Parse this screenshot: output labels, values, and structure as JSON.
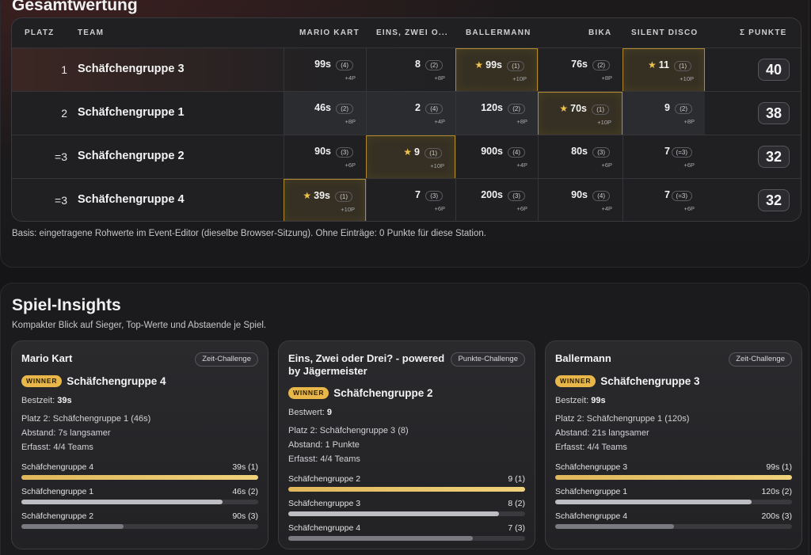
{
  "overview": {
    "title": "Gesamtwertung",
    "headers": {
      "platz": "PLATZ",
      "team": "TEAM",
      "games": [
        "MARIO KART",
        "EINS, ZWEI O...",
        "BALLERMANN",
        "BIKA",
        "SILENT DISCO"
      ],
      "total": "Σ PUNKTE"
    },
    "rows": [
      {
        "platz": "1",
        "team": "Schäfchengruppe 3",
        "total": "40",
        "cells": [
          {
            "value": "99s",
            "rank": "(4)",
            "points": "+4P",
            "star": false
          },
          {
            "value": "8",
            "rank": "(2)",
            "points": "+8P",
            "star": false
          },
          {
            "value": "99s",
            "rank": "(1)",
            "points": "+10P",
            "star": true
          },
          {
            "value": "76s",
            "rank": "(2)",
            "points": "+8P",
            "star": false
          },
          {
            "value": "11",
            "rank": "(1)",
            "points": "+10P",
            "star": true
          }
        ]
      },
      {
        "platz": "2",
        "team": "Schäfchengruppe 1",
        "total": "38",
        "cells": [
          {
            "value": "46s",
            "rank": "(2)",
            "points": "+8P",
            "star": false
          },
          {
            "value": "2",
            "rank": "(4)",
            "points": "+4P",
            "star": false
          },
          {
            "value": "120s",
            "rank": "(2)",
            "points": "+8P",
            "star": false
          },
          {
            "value": "70s",
            "rank": "(1)",
            "points": "+10P",
            "star": true
          },
          {
            "value": "9",
            "rank": "(2)",
            "points": "+8P",
            "star": false
          }
        ]
      },
      {
        "platz": "=3",
        "team": "Schäfchengruppe 2",
        "total": "32",
        "cells": [
          {
            "value": "90s",
            "rank": "(3)",
            "points": "+6P",
            "star": false
          },
          {
            "value": "9",
            "rank": "(1)",
            "points": "+10P",
            "star": true
          },
          {
            "value": "900s",
            "rank": "(4)",
            "points": "+4P",
            "star": false
          },
          {
            "value": "80s",
            "rank": "(3)",
            "points": "+6P",
            "star": false
          },
          {
            "value": "7",
            "rank": "(=3)",
            "points": "+6P",
            "star": false
          }
        ]
      },
      {
        "platz": "=3",
        "team": "Schäfchengruppe 4",
        "total": "32",
        "cells": [
          {
            "value": "39s",
            "rank": "(1)",
            "points": "+10P",
            "star": true
          },
          {
            "value": "7",
            "rank": "(3)",
            "points": "+6P",
            "star": false
          },
          {
            "value": "200s",
            "rank": "(3)",
            "points": "+6P",
            "star": false
          },
          {
            "value": "90s",
            "rank": "(4)",
            "points": "+4P",
            "star": false
          },
          {
            "value": "7",
            "rank": "(=3)",
            "points": "+6P",
            "star": false
          }
        ]
      }
    ],
    "basis_note": "Basis: eingetragene Rohwerte im Event-Editor (dieselbe Browser-Sitzung). Ohne Einträge: 0 Punkte für diese Station."
  },
  "insights": {
    "title": "Spiel-Insights",
    "subtitle": "Kompakter Blick auf Sieger, Top-Werte und Abstaende je Spiel.",
    "winner_badge": "WINNER",
    "cards": [
      {
        "name": "Mario Kart",
        "type": "Zeit-Challenge",
        "winner": "Schäfchengruppe 4",
        "best_label": "Bestzeit:",
        "best_value": "39s",
        "second": "Platz 2: Schäfchengruppe 1 (46s)",
        "gap": "Abstand: 7s langsamer",
        "coverage": "Erfasst: 4/4 Teams",
        "bars": [
          {
            "team": "Schäfchengruppe 4",
            "value": "39s (1)",
            "fill": 1.0,
            "style": "gold"
          },
          {
            "team": "Schäfchengruppe 1",
            "value": "46s (2)",
            "fill": 0.85,
            "style": "silver"
          },
          {
            "team": "Schäfchengruppe 2",
            "value": "90s (3)",
            "fill": 0.43,
            "style": "gray"
          }
        ]
      },
      {
        "name": "Eins, Zwei oder Drei? - powered by Jägermeister",
        "type": "Punkte-Challenge",
        "winner": "Schäfchengruppe 2",
        "best_label": "Bestwert:",
        "best_value": "9",
        "second": "Platz 2: Schäfchengruppe 3 (8)",
        "gap": "Abstand: 1 Punkte",
        "coverage": "Erfasst: 4/4 Teams",
        "bars": [
          {
            "team": "Schäfchengruppe 2",
            "value": "9 (1)",
            "fill": 1.0,
            "style": "gold"
          },
          {
            "team": "Schäfchengruppe 3",
            "value": "8 (2)",
            "fill": 0.89,
            "style": "silver"
          },
          {
            "team": "Schäfchengruppe 4",
            "value": "7 (3)",
            "fill": 0.78,
            "style": "gray"
          }
        ]
      },
      {
        "name": "Ballermann",
        "type": "Zeit-Challenge",
        "winner": "Schäfchengruppe 3",
        "best_label": "Bestzeit:",
        "best_value": "99s",
        "second": "Platz 2: Schäfchengruppe 1 (120s)",
        "gap": "Abstand: 21s langsamer",
        "coverage": "Erfasst: 4/4 Teams",
        "bars": [
          {
            "team": "Schäfchengruppe 3",
            "value": "99s (1)",
            "fill": 1.0,
            "style": "gold"
          },
          {
            "team": "Schäfchengruppe 1",
            "value": "120s (2)",
            "fill": 0.83,
            "style": "silver"
          },
          {
            "team": "Schäfchengruppe 4",
            "value": "200s (3)",
            "fill": 0.5,
            "style": "gray"
          }
        ]
      }
    ]
  }
}
